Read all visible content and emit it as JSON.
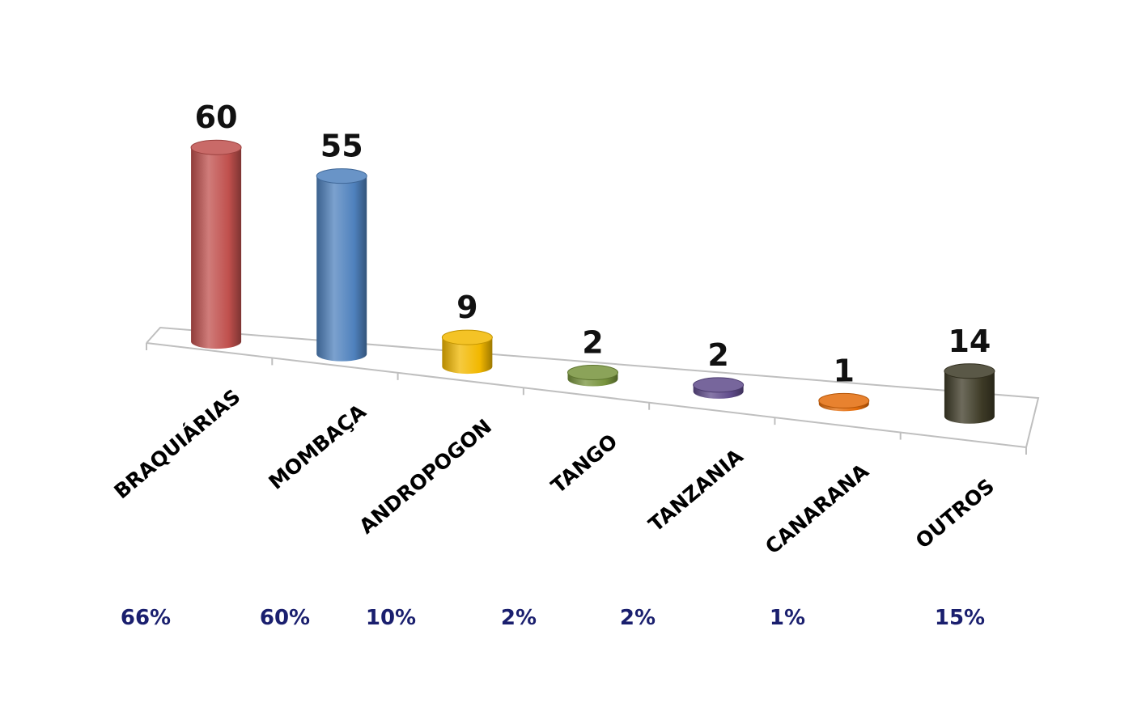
{
  "chart_data": {
    "type": "bar",
    "style": "3d-cylinder",
    "categories": [
      "BRAQUIÁRIAS",
      "MOMBAÇA",
      "ANDROPOGON",
      "TANGO",
      "TANZANIA",
      "CANARANA",
      "OUTROS"
    ],
    "values": [
      60,
      55,
      9,
      2,
      2,
      1,
      14
    ],
    "data_labels": [
      "60",
      "55",
      "9",
      "2",
      "2",
      "1",
      "14"
    ],
    "percentages": [
      "66%",
      "60%",
      "10%",
      "2%",
      "2%",
      "1%",
      "15%"
    ],
    "colors": [
      "#c0504d",
      "#4f81bd",
      "#f2b800",
      "#77933c",
      "#5f4b8b",
      "#e46c0a",
      "#3d3a26"
    ],
    "title": "",
    "xlabel": "",
    "ylabel": "",
    "ylim": [
      0,
      60
    ],
    "grid": false,
    "legend": "none"
  }
}
